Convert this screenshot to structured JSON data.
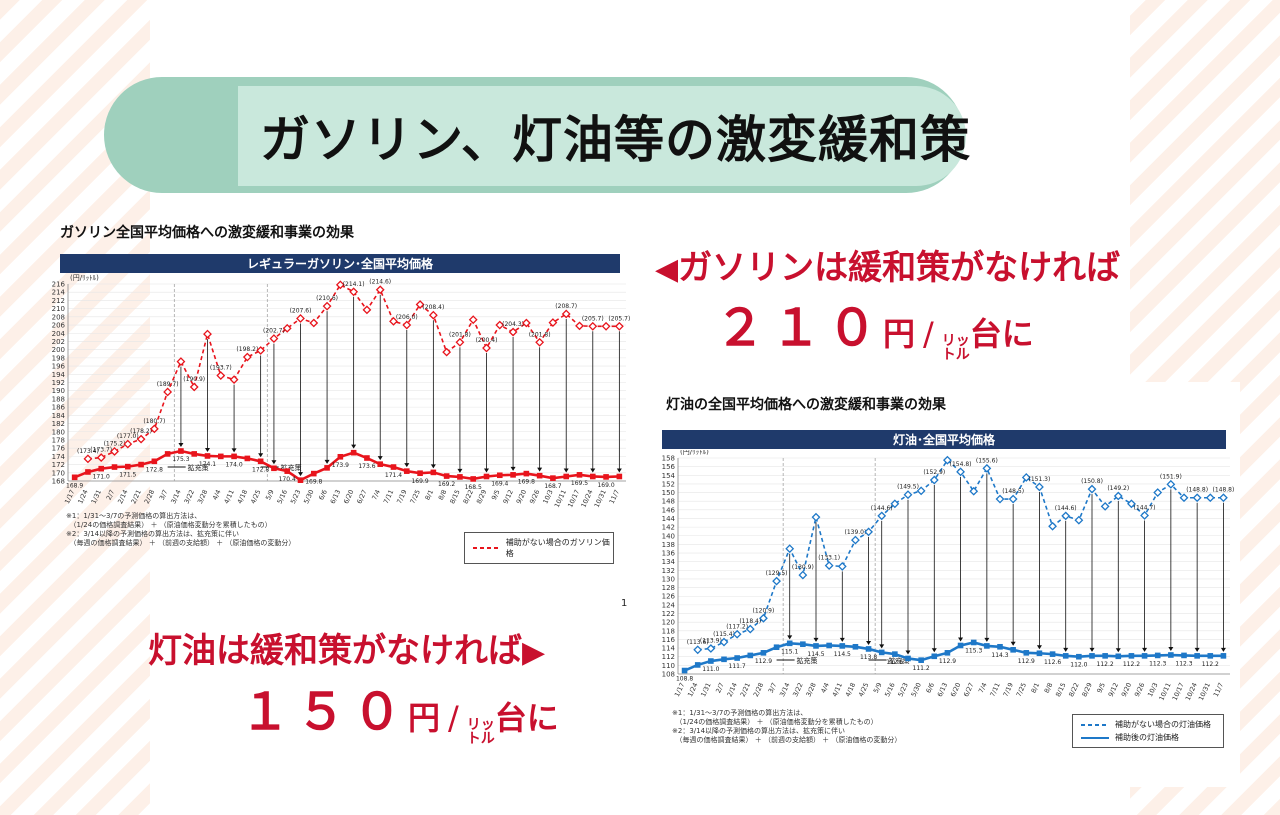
{
  "title": "ガソリン、灯油等の激変緩和策",
  "callouts": {
    "gas_line1": "ガソリンは緩和策がなければ",
    "gas_value": "２１０",
    "gas_unit_pre": "円",
    "gas_unit_small": "リッ",
    "gas_unit_small2": "トル",
    "gas_unit_post": "台に",
    "kero_line1": "灯油は緩和策がなければ",
    "kero_value": "１５０",
    "kero_unit_pre": "円",
    "kero_unit_small": "リッ",
    "kero_unit_small2": "トル",
    "kero_unit_post": "台に",
    "slash": "/"
  },
  "gas_panel": {
    "section_title": "ガソリン全国平均価格への激変緩和事業の効果",
    "header": "レギュラーガソリン･全国平均価格",
    "note1": "※1：1/31～3/7の予測価格の算出方法は、",
    "note2": "　（1/24の価格調査結果） ＋ （原油価格変動分を累積したもの）",
    "note3": "※2：3/14以降の予測価格の算出方法は、拡充策に伴い",
    "note4": "　（毎週の価格調査結果） ＋ （前週の支給額） ＋ （原油価格の変動分）",
    "legend1": "補助がない場合のガソリン価格",
    "page": "1",
    "kakuju": "拡充策"
  },
  "kero_panel": {
    "section_title": "灯油の全国平均価格への激変緩和事業の効果",
    "header": "灯油･全国平均価格",
    "note1": "※1：1/31～3/7の予測価格の算出方法は、",
    "note2": "　（1/24の価格調査結果） ＋ （原油価格変動分を累積したもの）",
    "note3": "※2：3/14以降の予測価格の算出方法は、拡充策に伴い",
    "note4": "　（毎週の価格調査結果） ＋ （前週の支給額） ＋ （原油価格の変動分）",
    "legend1": "補助がない場合の灯油価格",
    "legend2": "補助後の灯油価格",
    "kakuju": "拡充策"
  },
  "colors": {
    "gas": "#e8141c",
    "kero": "#1e78c8",
    "header": "#1f3a6b",
    "accent": "#c8102e",
    "banner": "#c9e8dc"
  },
  "chart_data": [
    {
      "type": "line",
      "unit_label": "(円/ﾘｯﾄﾙ)",
      "ylim": [
        168,
        216
      ],
      "ytick_step": 2,
      "x": [
        "1/17",
        "1/24",
        "1/31",
        "2/7",
        "2/14",
        "2/21",
        "2/28",
        "3/7",
        "3/14",
        "3/22",
        "3/28",
        "4/4",
        "4/11",
        "4/18",
        "4/25",
        "5/9",
        "5/16",
        "5/23",
        "5/30",
        "6/6",
        "6/13",
        "6/20",
        "6/27",
        "7/4",
        "7/11",
        "7/19",
        "7/25",
        "8/1",
        "8/8",
        "8/15",
        "8/22",
        "8/29",
        "9/5",
        "9/12",
        "9/20",
        "9/26",
        "10/3",
        "10/11",
        "10/17",
        "10/24",
        "10/31",
        "11/7"
      ],
      "series": [
        {
          "name": "補助がない場合のガソリン価格",
          "values": [
            null,
            173.4,
            173.7,
            175.2,
            177.0,
            178.2,
            180.7,
            189.7,
            197.1,
            190.9,
            203.8,
            193.7,
            192.7,
            198.2,
            199.8,
            202.7,
            205.2,
            207.6,
            206.5,
            210.6,
            215.8,
            214.1,
            209.7,
            214.6,
            206.9,
            206.0,
            211.0,
            208.4,
            199.4,
            201.8,
            207.3,
            200.4,
            206.0,
            204.3,
            206.5,
            201.8,
            206.6,
            208.7,
            205.8,
            205.7,
            205.7,
            205.7
          ]
        },
        {
          "values": [
            168.9,
            170.2,
            171.0,
            171.4,
            171.5,
            172.0,
            172.8,
            174.6,
            175.3,
            174.6,
            174.1,
            174.0,
            174.0,
            173.5,
            172.8,
            171.1,
            170.4,
            168.2,
            169.8,
            171.2,
            173.9,
            174.9,
            173.6,
            172.1,
            171.4,
            170.4,
            169.9,
            170.1,
            169.2,
            169.0,
            168.5,
            169.1,
            169.4,
            169.5,
            169.8,
            169.3,
            168.7,
            169.1,
            169.5,
            169.1,
            169.0,
            169.1
          ]
        }
      ]
    },
    {
      "type": "line",
      "unit_label": "(円/ﾘｯﾄﾙ)",
      "ylim": [
        108,
        158
      ],
      "ytick_step": 2,
      "x": [
        "1/17",
        "1/24",
        "1/31",
        "2/7",
        "2/14",
        "2/21",
        "2/28",
        "3/7",
        "3/14",
        "3/22",
        "3/28",
        "4/4",
        "4/11",
        "4/18",
        "4/25",
        "5/9",
        "5/16",
        "5/23",
        "5/30",
        "6/6",
        "6/13",
        "6/20",
        "6/27",
        "7/4",
        "7/11",
        "7/19",
        "7/25",
        "8/1",
        "8/8",
        "8/15",
        "8/22",
        "8/29",
        "9/5",
        "9/12",
        "9/20",
        "9/26",
        "10/3",
        "10/11",
        "10/17",
        "10/24",
        "10/31",
        "11/7"
      ],
      "series": [
        {
          "name": "補助がない場合の灯油価格",
          "values": [
            null,
            113.6,
            113.9,
            115.4,
            117.2,
            118.4,
            120.9,
            129.5,
            137.0,
            130.9,
            144.3,
            133.1,
            132.9,
            139.0,
            140.9,
            144.6,
            147.4,
            149.5,
            150.4,
            152.9,
            157.5,
            154.8,
            150.3,
            155.6,
            148.5,
            148.5,
            153.5,
            151.3,
            142.2,
            144.6,
            143.6,
            150.8,
            146.8,
            149.2,
            147.4,
            144.7,
            150.0,
            151.9,
            148.8,
            148.8,
            148.8,
            148.8
          ]
        },
        {
          "name": "補助後の灯油価格",
          "values": [
            108.8,
            110.1,
            111.0,
            111.4,
            111.7,
            112.3,
            112.9,
            114.2,
            115.1,
            114.9,
            114.5,
            114.6,
            114.5,
            114.3,
            113.8,
            113.0,
            112.6,
            111.6,
            111.2,
            112.1,
            112.9,
            114.6,
            115.3,
            114.5,
            114.3,
            113.6,
            112.9,
            112.8,
            112.6,
            112.2,
            112.0,
            112.2,
            112.2,
            112.1,
            112.2,
            112.2,
            112.3,
            112.4,
            112.3,
            112.2,
            112.2,
            112.2
          ]
        }
      ]
    }
  ]
}
